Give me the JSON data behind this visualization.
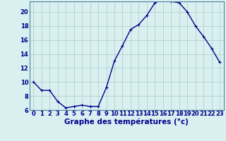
{
  "x": [
    0,
    1,
    2,
    3,
    4,
    5,
    6,
    7,
    8,
    9,
    10,
    11,
    12,
    13,
    14,
    15,
    16,
    17,
    18,
    19,
    20,
    21,
    22,
    23
  ],
  "y": [
    10.0,
    8.8,
    8.8,
    7.2,
    6.3,
    6.5,
    6.7,
    6.5,
    6.5,
    9.2,
    13.0,
    15.2,
    17.5,
    18.2,
    19.5,
    21.3,
    21.8,
    21.5,
    21.3,
    20.0,
    18.0,
    16.5,
    14.8,
    12.8
  ],
  "xlabel": "Graphe des températures (°c)",
  "ylim": [
    6,
    21.5
  ],
  "xlim": [
    -0.5,
    23.5
  ],
  "yticks": [
    6,
    8,
    10,
    12,
    14,
    16,
    18,
    20
  ],
  "xticks": [
    0,
    1,
    2,
    3,
    4,
    5,
    6,
    7,
    8,
    9,
    10,
    11,
    12,
    13,
    14,
    15,
    16,
    17,
    18,
    19,
    20,
    21,
    22,
    23
  ],
  "line_color": "#00008b",
  "marker_color": "#00008b",
  "bg_color": "#d8f0f0",
  "grid_color": "#aec8c8",
  "xlabel_color": "#00008b",
  "xlabel_fontsize": 7.5,
  "tick_fontsize": 6.0,
  "tick_color": "#00008b",
  "line_width": 1.0,
  "marker_size": 3.0
}
